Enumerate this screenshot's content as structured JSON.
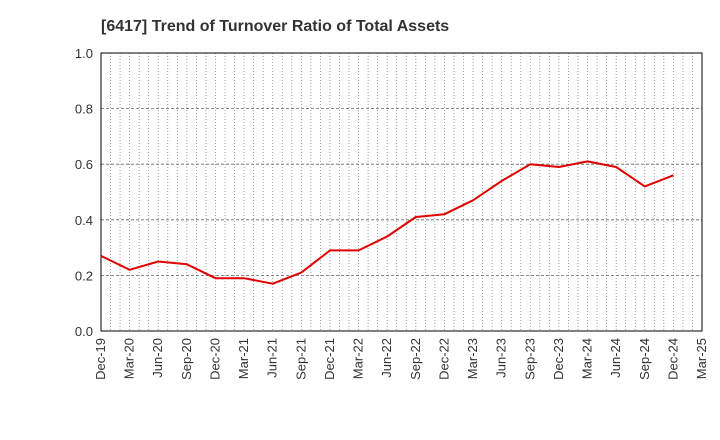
{
  "chart_data": {
    "type": "line",
    "title": "[6417]  Trend of Turnover Ratio of Total Assets",
    "xlabel": "",
    "ylabel": "",
    "x_ticks": [
      "Dec-19",
      "Mar-20",
      "Jun-20",
      "Sep-20",
      "Dec-20",
      "Mar-21",
      "Jun-21",
      "Sep-21",
      "Dec-21",
      "Mar-22",
      "Jun-22",
      "Sep-22",
      "Dec-22",
      "Mar-23",
      "Jun-23",
      "Sep-23",
      "Dec-23",
      "Mar-24",
      "Jun-24",
      "Sep-24",
      "Dec-24",
      "Mar-25"
    ],
    "y_ticks": [
      "0.0",
      "0.2",
      "0.4",
      "0.6",
      "0.8",
      "1.0"
    ],
    "ylim": [
      0,
      1.0
    ],
    "grid": true,
    "series": [
      {
        "name": "",
        "color": "#e00000",
        "x": [
          "Dec-19",
          "Mar-20",
          "Jun-20",
          "Sep-20",
          "Dec-20",
          "Mar-21",
          "Jun-21",
          "Sep-21",
          "Dec-21",
          "Mar-22",
          "Jun-22",
          "Sep-22",
          "Dec-22",
          "Mar-23",
          "Jun-23",
          "Sep-23",
          "Dec-23",
          "Mar-24",
          "Jun-24",
          "Sep-24",
          "Dec-24"
        ],
        "values": [
          0.27,
          0.22,
          0.25,
          0.24,
          0.19,
          0.19,
          0.17,
          0.21,
          0.29,
          0.29,
          0.34,
          0.41,
          0.42,
          0.47,
          0.54,
          0.6,
          0.59,
          0.61,
          0.59,
          0.52,
          0.56
        ]
      }
    ]
  }
}
